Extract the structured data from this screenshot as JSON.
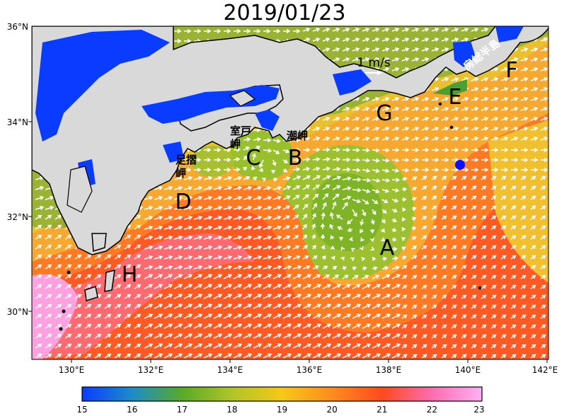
{
  "title": "2019/01/23",
  "axes": {
    "lat_ticks": [
      "36°N",
      "34°N",
      "32°N",
      "30°N"
    ],
    "lon_ticks": [
      "130°E",
      "132°E",
      "134°E",
      "136°E",
      "138°E",
      "140°E",
      "142°E"
    ]
  },
  "scale_arrow": {
    "label": "1 m/s"
  },
  "colorbar": {
    "ticks": [
      "15",
      "16",
      "17",
      "18",
      "19",
      "20",
      "21",
      "22",
      "23"
    ],
    "colors": [
      "#0a3cff",
      "#1e7ad2",
      "#3c9a50",
      "#6cb020",
      "#a0c028",
      "#f0c020",
      "#ff9a1e",
      "#ff4a1e",
      "#ff7cc0",
      "#ffb0f0"
    ]
  },
  "region_labels": [
    "A",
    "B",
    "C",
    "D",
    "E",
    "F",
    "G",
    "H"
  ],
  "place_names": {
    "ashizuri": [
      "足摺",
      "岬"
    ],
    "muroto": [
      "室戸",
      "岬"
    ],
    "shionomisaki": "潮岬",
    "boso": "房総半島"
  },
  "marker_color": "#1010ff"
}
